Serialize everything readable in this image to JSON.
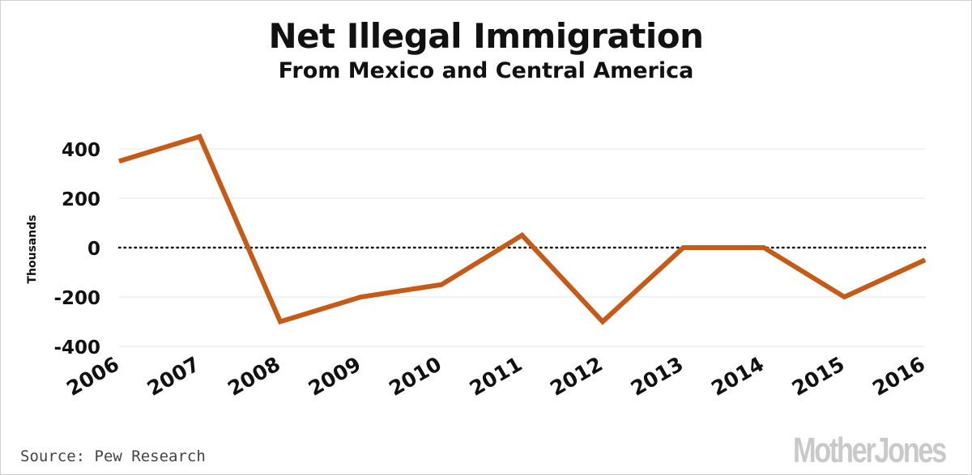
{
  "chart_data": {
    "type": "line",
    "title": "Net Illegal Immigration",
    "subtitle": "From Mexico and Central America",
    "xlabel": "",
    "ylabel": "Thousands",
    "x": [
      "2006",
      "2007",
      "2008",
      "2009",
      "2010",
      "2011",
      "2012",
      "2013",
      "2014",
      "2015",
      "2016"
    ],
    "series": [
      {
        "name": "Net illegal immigration",
        "values": [
          350,
          450,
          -300,
          -200,
          -150,
          50,
          -300,
          0,
          0,
          -200,
          -50
        ]
      }
    ],
    "yticks": [
      400,
      200,
      0,
      -200,
      -400
    ],
    "ytick_labels": [
      "400",
      "200",
      "0",
      "-200",
      "-400"
    ],
    "ylim": [
      -400,
      400
    ],
    "grid": true,
    "zero_line": "dotted",
    "line_color": "#c65a17",
    "grid_color": "#e4e4e4"
  },
  "source": "Source: Pew Research",
  "brand": "MotherJones"
}
